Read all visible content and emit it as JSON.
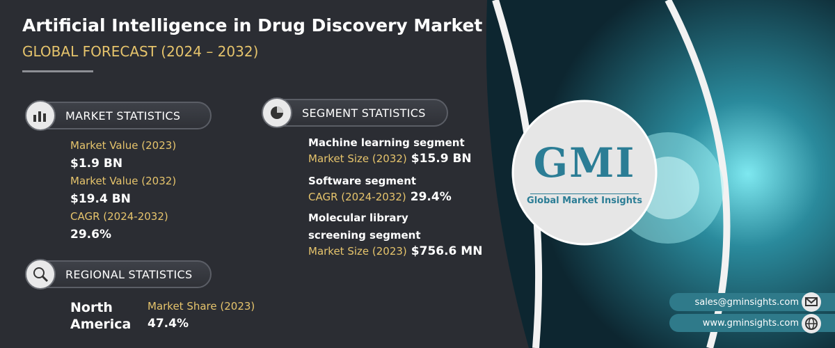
{
  "header": {
    "title": "Artificial Intelligence in Drug Discovery Market",
    "subtitle": "GLOBAL FORECAST (2024 – 2032)"
  },
  "market_statistics": {
    "heading": "MARKET STATISTICS",
    "items": [
      {
        "label": "Market Value (2023)",
        "value": "$1.9 BN"
      },
      {
        "label": "Market Value (2032)",
        "value": "$19.4 BN"
      },
      {
        "label": "CAGR (2024-2032)",
        "value": "29.6%"
      }
    ]
  },
  "segment_statistics": {
    "heading": "SEGMENT STATISTICS",
    "items": [
      {
        "name": "Machine learning segment",
        "label": "Market Size (2032)",
        "value": "$15.9 BN"
      },
      {
        "name": "Software segment",
        "label": "CAGR (2024-2032)",
        "value": "29.4%"
      },
      {
        "name": "Molecular library screening segment",
        "label": "Market Size (2023)",
        "value": "$756.6 MN"
      }
    ]
  },
  "regional_statistics": {
    "heading": "REGIONAL STATISTICS",
    "region": "North America",
    "label": "Market Share (2023)",
    "value": "47.4%"
  },
  "logo": {
    "mark": "GMI",
    "name": "Global Market Insights"
  },
  "contact": {
    "email": "sales@gminsights.com",
    "website": "www.gminsights.com"
  }
}
